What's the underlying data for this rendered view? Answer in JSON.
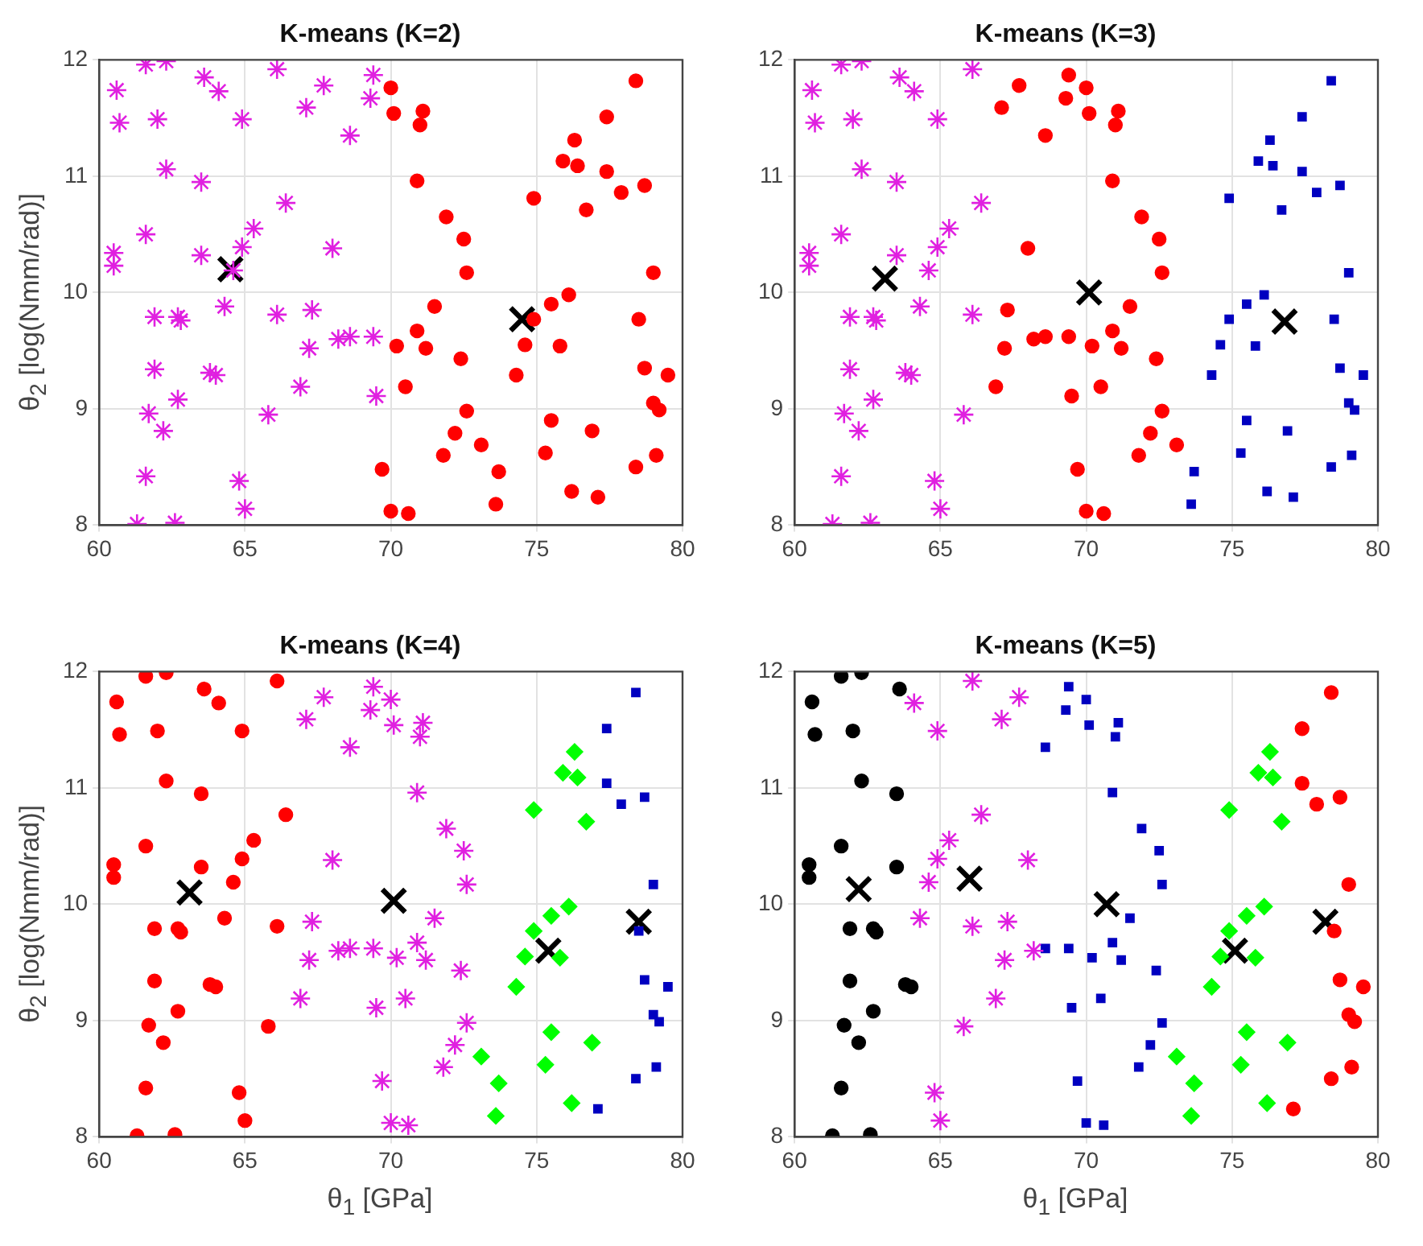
{
  "chart_data": [
    {
      "type": "scatter",
      "title": "K-means (K=2)",
      "ylabel": "θ$_{2}$ [log(Nmm/rad)]",
      "xlim": [
        60,
        80
      ],
      "ylim": [
        8,
        12
      ],
      "xticks": [
        60,
        65,
        70,
        75,
        80
      ],
      "yticks": [
        8,
        9,
        10,
        11,
        12
      ],
      "grid": true,
      "legend": false,
      "series": [
        {
          "color": "#e020e0",
          "marker": "cross",
          "x": [
            60.6,
            60.7,
            61.6,
            62.3,
            62.0,
            62.3,
            63.6,
            64.1,
            64.9,
            66.1,
            67.7,
            67.1,
            68.6,
            69.4,
            69.3,
            63.5,
            66.4,
            65.3,
            64.9,
            68.0,
            61.6,
            60.5,
            60.5,
            63.5,
            64.3,
            61.9,
            62.7,
            62.8,
            66.1,
            67.3,
            67.2,
            68.2,
            68.6,
            69.4,
            61.9,
            63.8,
            64.0,
            66.9,
            62.7,
            69.5,
            61.7,
            62.2,
            65.8,
            61.6,
            64.8,
            65.0,
            61.3,
            62.6,
            64.6
          ],
          "values": [
            11.74,
            11.46,
            11.96,
            11.99,
            11.49,
            11.06,
            11.85,
            11.73,
            11.49,
            11.92,
            11.78,
            11.59,
            11.35,
            11.87,
            11.67,
            10.95,
            10.77,
            10.55,
            10.39,
            10.38,
            10.5,
            10.34,
            10.23,
            10.32,
            9.88,
            9.79,
            9.79,
            9.76,
            9.81,
            9.85,
            9.52,
            9.6,
            9.62,
            9.62,
            9.34,
            9.31,
            9.29,
            9.19,
            9.08,
            9.11,
            8.96,
            8.81,
            8.95,
            8.42,
            8.38,
            8.14,
            8.01,
            8.02,
            10.19
          ]
        },
        {
          "color": "#ff0000",
          "marker": "circle",
          "x": [
            70.0,
            70.1,
            71.1,
            71.0,
            70.9,
            71.9,
            72.5,
            72.6,
            71.5,
            70.9,
            70.2,
            71.2,
            72.4,
            70.5,
            72.6,
            72.2,
            73.1,
            71.8,
            73.7,
            69.7,
            73.6,
            70.0,
            70.6,
            74.3,
            74.6,
            74.9,
            74.9,
            75.5,
            76.1,
            75.8,
            75.5,
            75.3,
            76.2,
            77.1,
            76.9,
            75.9,
            76.3,
            76.4,
            76.7,
            77.4,
            77.4,
            77.9,
            78.4,
            78.7,
            79.0,
            78.5,
            78.7,
            79.5,
            79.0,
            79.2,
            79.1,
            78.4
          ],
          "values": [
            11.76,
            11.54,
            11.56,
            11.44,
            10.96,
            10.65,
            10.46,
            10.17,
            9.88,
            9.67,
            9.54,
            9.52,
            9.43,
            9.19,
            8.98,
            8.79,
            8.69,
            8.6,
            8.46,
            8.48,
            8.18,
            8.12,
            8.1,
            9.29,
            9.55,
            9.77,
            10.81,
            9.9,
            9.98,
            9.54,
            8.9,
            8.62,
            8.29,
            8.24,
            8.81,
            11.13,
            11.31,
            11.09,
            10.71,
            11.04,
            11.51,
            10.86,
            11.82,
            10.92,
            10.17,
            9.77,
            9.35,
            9.29,
            9.05,
            8.99,
            8.6,
            8.5
          ]
        },
        {
          "color": "#000000",
          "marker": "cross",
          "x": [
            64.5,
            74.5
          ],
          "values": [
            10.2,
            9.77
          ]
        }
      ]
    },
    {
      "type": "scatter",
      "title": "K-means (K=3)",
      "xlim": [
        60,
        80
      ],
      "ylim": [
        8,
        12
      ],
      "xticks": [
        60,
        65,
        70,
        75,
        80
      ],
      "yticks": [
        8,
        9,
        10,
        11,
        12
      ],
      "grid": true,
      "legend": false,
      "series": [
        {
          "color": "#e020e0",
          "marker": "cross",
          "x": [
            60.6,
            60.7,
            61.6,
            62.3,
            62.0,
            62.3,
            63.6,
            64.1,
            64.9,
            66.1,
            63.5,
            66.4,
            65.3,
            64.9,
            61.6,
            60.5,
            60.5,
            63.5,
            64.3,
            61.9,
            62.7,
            62.8,
            66.1,
            61.9,
            63.8,
            64.0,
            62.7,
            61.7,
            62.2,
            65.8,
            61.6,
            64.8,
            65.0,
            61.3,
            62.6,
            64.6
          ],
          "values": [
            11.74,
            11.46,
            11.96,
            11.99,
            11.49,
            11.06,
            11.85,
            11.73,
            11.49,
            11.92,
            10.95,
            10.77,
            10.55,
            10.39,
            10.5,
            10.34,
            10.23,
            10.32,
            9.88,
            9.79,
            9.79,
            9.76,
            9.81,
            9.34,
            9.31,
            9.29,
            9.08,
            8.96,
            8.81,
            8.95,
            8.42,
            8.38,
            8.14,
            8.01,
            8.02,
            10.19
          ]
        },
        {
          "color": "#ff0000",
          "marker": "circle",
          "x": [
            67.7,
            67.1,
            68.6,
            69.4,
            69.3,
            68.0,
            67.3,
            67.2,
            68.2,
            68.6,
            69.4,
            66.9,
            69.5,
            70.0,
            70.1,
            71.1,
            71.0,
            70.9,
            71.9,
            72.5,
            72.6,
            71.5,
            70.9,
            70.2,
            71.2,
            72.4,
            70.5,
            72.6,
            72.2,
            71.8,
            69.7,
            70.0,
            70.6,
            73.1
          ],
          "values": [
            11.78,
            11.59,
            11.35,
            11.87,
            11.67,
            10.38,
            9.85,
            9.52,
            9.6,
            9.62,
            9.62,
            9.19,
            9.11,
            11.76,
            11.54,
            11.56,
            11.44,
            10.96,
            10.65,
            10.46,
            10.17,
            9.88,
            9.67,
            9.54,
            9.52,
            9.43,
            9.19,
            8.98,
            8.79,
            8.6,
            8.48,
            8.12,
            8.1,
            8.69
          ]
        },
        {
          "color": "#0000c0",
          "marker": "square",
          "x": [
            73.7,
            73.6,
            74.3,
            74.6,
            74.9,
            74.9,
            75.5,
            76.1,
            75.8,
            75.5,
            75.3,
            76.2,
            77.1,
            76.9,
            75.9,
            76.3,
            76.4,
            76.7,
            77.4,
            77.4,
            77.9,
            78.4,
            78.7,
            79.0,
            78.5,
            78.7,
            79.5,
            79.0,
            79.2,
            79.1,
            78.4
          ],
          "values": [
            8.46,
            8.18,
            9.29,
            9.55,
            9.77,
            10.81,
            9.9,
            9.98,
            9.54,
            8.9,
            8.62,
            8.29,
            8.24,
            8.81,
            11.13,
            11.31,
            11.09,
            10.71,
            11.04,
            11.51,
            10.86,
            11.82,
            10.92,
            10.17,
            9.77,
            9.35,
            9.29,
            9.05,
            8.99,
            8.6,
            8.5
          ]
        },
        {
          "color": "#000000",
          "marker": "cross",
          "x": [
            63.1,
            70.1,
            76.8
          ],
          "values": [
            10.12,
            10.0,
            9.75
          ]
        }
      ]
    },
    {
      "type": "scatter",
      "title": "K-means (K=4)",
      "xlabel": "θ$_{1}$ [GPa]",
      "ylabel": "θ$_{2}$ [log(Nmm/rad)]",
      "xlim": [
        60,
        80
      ],
      "ylim": [
        8,
        12
      ],
      "xticks": [
        60,
        65,
        70,
        75,
        80
      ],
      "yticks": [
        8,
        9,
        10,
        11,
        12
      ],
      "grid": true,
      "legend": false,
      "series": [
        {
          "color": "#ff0000",
          "marker": "circle",
          "x": [
            60.6,
            60.7,
            61.6,
            62.3,
            62.0,
            62.3,
            63.6,
            64.1,
            64.9,
            66.1,
            63.5,
            66.4,
            65.3,
            64.9,
            61.6,
            60.5,
            60.5,
            63.5,
            64.3,
            61.9,
            62.7,
            62.8,
            66.1,
            61.9,
            63.8,
            64.0,
            62.7,
            61.7,
            62.2,
            65.8,
            61.6,
            64.8,
            65.0,
            61.3,
            62.6,
            64.6
          ],
          "values": [
            11.74,
            11.46,
            11.96,
            11.99,
            11.49,
            11.06,
            11.85,
            11.73,
            11.49,
            11.92,
            10.95,
            10.77,
            10.55,
            10.39,
            10.5,
            10.34,
            10.23,
            10.32,
            9.88,
            9.79,
            9.79,
            9.76,
            9.81,
            9.34,
            9.31,
            9.29,
            9.08,
            8.96,
            8.81,
            8.95,
            8.42,
            8.38,
            8.14,
            8.01,
            8.02,
            10.19
          ]
        },
        {
          "color": "#e020e0",
          "marker": "cross",
          "x": [
            67.7,
            67.1,
            68.6,
            69.4,
            69.3,
            68.0,
            67.3,
            67.2,
            68.2,
            68.6,
            69.4,
            66.9,
            69.5,
            70.0,
            70.1,
            71.1,
            71.0,
            70.9,
            71.9,
            72.5,
            72.6,
            71.5,
            70.9,
            70.2,
            71.2,
            72.4,
            70.5,
            72.6,
            72.2,
            71.8,
            69.7,
            70.0,
            70.6
          ],
          "values": [
            11.78,
            11.59,
            11.35,
            11.87,
            11.67,
            10.38,
            9.85,
            9.52,
            9.6,
            9.62,
            9.62,
            9.19,
            9.11,
            11.76,
            11.54,
            11.56,
            11.44,
            10.96,
            10.65,
            10.46,
            10.17,
            9.88,
            9.67,
            9.54,
            9.52,
            9.43,
            9.19,
            8.98,
            8.79,
            8.6,
            8.48,
            8.12,
            8.1
          ]
        },
        {
          "color": "#00ff00",
          "marker": "diamond",
          "x": [
            73.1,
            73.7,
            73.6,
            74.3,
            74.6,
            74.9,
            74.9,
            75.5,
            76.1,
            75.8,
            75.5,
            75.3,
            76.2,
            76.9,
            75.9,
            76.3,
            76.4,
            76.7
          ],
          "values": [
            8.69,
            8.46,
            8.18,
            9.29,
            9.55,
            9.77,
            10.81,
            9.9,
            9.98,
            9.54,
            8.9,
            8.62,
            8.29,
            8.81,
            11.13,
            11.31,
            11.09,
            10.71
          ]
        },
        {
          "color": "#0000c0",
          "marker": "square",
          "x": [
            77.1,
            77.4,
            77.4,
            77.9,
            78.4,
            78.7,
            79.0,
            78.5,
            78.7,
            79.5,
            79.0,
            79.2,
            79.1,
            78.4
          ],
          "values": [
            8.24,
            11.04,
            11.51,
            10.86,
            11.82,
            10.92,
            10.17,
            9.77,
            9.35,
            9.29,
            9.05,
            8.99,
            8.6,
            8.5
          ]
        },
        {
          "color": "#000000",
          "marker": "cross",
          "x": [
            63.1,
            70.1,
            75.4,
            78.5
          ],
          "values": [
            10.1,
            10.03,
            9.6,
            9.85
          ]
        }
      ]
    },
    {
      "type": "scatter",
      "title": "K-means (K=5)",
      "xlabel": "θ$_{1}$ [GPa]",
      "xlim": [
        60,
        80
      ],
      "ylim": [
        8,
        12
      ],
      "xticks": [
        60,
        65,
        70,
        75,
        80
      ],
      "yticks": [
        8,
        9,
        10,
        11,
        12
      ],
      "grid": true,
      "legend": false,
      "series": [
        {
          "color": "#000000",
          "marker": "circle",
          "x": [
            60.6,
            60.7,
            61.6,
            62.3,
            62.0,
            62.3,
            63.6,
            63.5,
            61.6,
            60.5,
            60.5,
            63.5,
            61.9,
            62.7,
            62.8,
            61.9,
            63.8,
            64.0,
            62.7,
            61.7,
            62.2,
            61.6,
            61.3,
            62.6
          ],
          "values": [
            11.74,
            11.46,
            11.96,
            11.99,
            11.49,
            11.06,
            11.85,
            10.95,
            10.5,
            10.34,
            10.23,
            10.32,
            9.79,
            9.79,
            9.76,
            9.34,
            9.31,
            9.29,
            9.08,
            8.96,
            8.81,
            8.42,
            8.01,
            8.02
          ]
        },
        {
          "color": "#e020e0",
          "marker": "cross",
          "x": [
            64.1,
            64.9,
            66.1,
            67.7,
            67.1,
            66.4,
            65.3,
            64.9,
            64.6,
            68.0,
            64.3,
            66.1,
            67.3,
            67.2,
            68.2,
            66.9,
            65.8,
            64.8,
            65.0
          ],
          "values": [
            11.73,
            11.49,
            11.92,
            11.78,
            11.59,
            10.77,
            10.55,
            10.39,
            10.19,
            10.38,
            9.88,
            9.81,
            9.85,
            9.52,
            9.6,
            9.19,
            8.95,
            8.38,
            8.14
          ]
        },
        {
          "color": "#0000c0",
          "marker": "square",
          "x": [
            68.6,
            69.4,
            69.3,
            68.6,
            69.4,
            69.5,
            70.0,
            70.1,
            71.1,
            71.0,
            70.9,
            71.9,
            72.5,
            72.6,
            71.5,
            70.9,
            70.2,
            71.2,
            72.4,
            70.5,
            72.6,
            72.2,
            71.8,
            69.7,
            70.0,
            70.6
          ],
          "values": [
            11.35,
            11.87,
            11.67,
            9.62,
            9.62,
            9.11,
            11.76,
            11.54,
            11.56,
            11.44,
            10.96,
            10.65,
            10.46,
            10.17,
            9.88,
            9.67,
            9.54,
            9.52,
            9.43,
            9.19,
            8.98,
            8.79,
            8.6,
            8.48,
            8.12,
            8.1
          ]
        },
        {
          "color": "#00ff00",
          "marker": "diamond",
          "x": [
            73.1,
            73.7,
            73.6,
            74.3,
            74.6,
            74.9,
            74.9,
            75.5,
            76.1,
            75.8,
            75.5,
            75.3,
            76.2,
            76.9,
            75.9,
            76.3,
            76.4,
            76.7
          ],
          "values": [
            8.69,
            8.46,
            8.18,
            9.29,
            9.55,
            9.77,
            10.81,
            9.9,
            9.98,
            9.54,
            8.9,
            8.62,
            8.29,
            8.81,
            11.13,
            11.31,
            11.09,
            10.71
          ]
        },
        {
          "color": "#ff0000",
          "marker": "circle",
          "x": [
            77.1,
            77.4,
            77.4,
            77.9,
            78.4,
            78.7,
            79.0,
            78.5,
            78.7,
            79.5,
            79.0,
            79.2,
            79.1,
            78.4
          ],
          "values": [
            8.24,
            11.04,
            11.51,
            10.86,
            11.82,
            10.92,
            10.17,
            9.77,
            9.35,
            9.29,
            9.05,
            8.99,
            8.6,
            8.5
          ]
        },
        {
          "color": "#000000",
          "marker": "cross",
          "x": [
            62.2,
            66.0,
            70.7,
            75.1,
            78.2
          ],
          "values": [
            10.13,
            10.22,
            10.0,
            9.6,
            9.85
          ]
        }
      ]
    }
  ]
}
